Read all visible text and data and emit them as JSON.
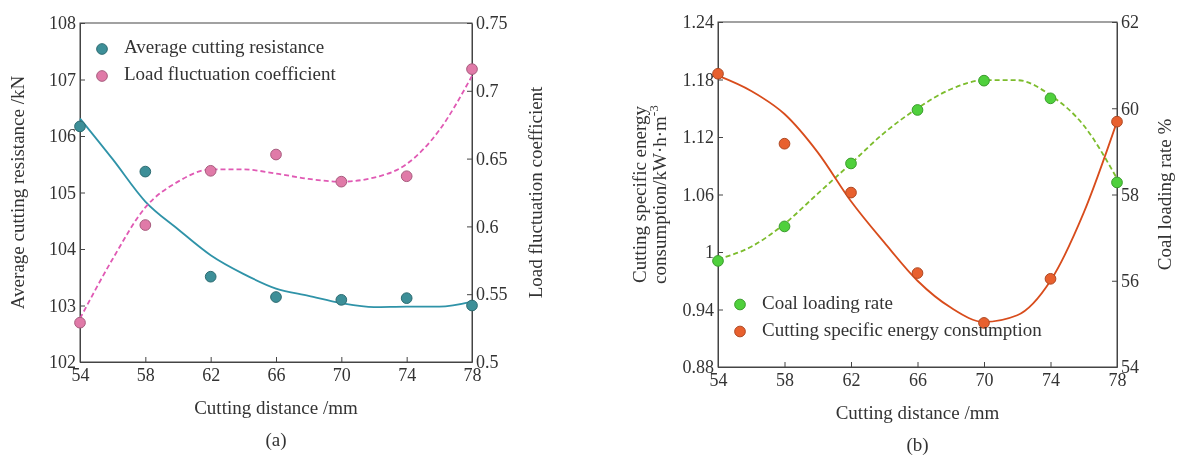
{
  "chart_data": [
    {
      "type": "scatter",
      "xlabel": "Cutting distance /mm",
      "ylabel": "Average cutting resistance /kN",
      "y2label": "Load fluctuation coefficient",
      "xlim": [
        54,
        78
      ],
      "xticks": [
        54,
        58,
        62,
        66,
        70,
        74,
        78
      ],
      "ylim": [
        102,
        108
      ],
      "yticks": [
        102,
        103,
        104,
        105,
        106,
        107,
        108
      ],
      "y2lim": [
        0.5,
        0.75
      ],
      "y2ticks": [
        0.5,
        0.55,
        0.6,
        0.65,
        0.7,
        0.75
      ],
      "legend": "top left",
      "annotations": [
        "(a)"
      ],
      "series": [
        {
          "name": "Average cutting resistance",
          "marker": "circle",
          "color": "#3d8f98",
          "x": [
            54,
            58,
            62,
            66,
            70,
            74,
            78
          ],
          "values": [
            106.17,
            105.37,
            103.51,
            103.15,
            103.1,
            103.13,
            103.0
          ]
        },
        {
          "name": "Load fluctuation coefficient",
          "marker": "circle",
          "axis": "y2",
          "color": "#e07aa8",
          "x": [
            54,
            58,
            62,
            66,
            70,
            74,
            78
          ],
          "values": [
            0.529,
            0.601,
            0.641,
            0.653,
            0.633,
            0.637,
            0.716
          ]
        },
        {
          "type": "line",
          "marker": "none",
          "line_style": "solid",
          "color": "#2f93a8",
          "x": [
            54,
            56,
            58,
            60,
            62,
            64,
            66,
            68,
            70,
            72,
            74,
            76,
            78
          ],
          "values": [
            106.31,
            105.59,
            104.84,
            104.35,
            103.89,
            103.56,
            103.3,
            103.17,
            103.04,
            102.97,
            102.98,
            102.98,
            103.07
          ]
        },
        {
          "type": "line",
          "marker": "none",
          "line_style": "dashed",
          "axis": "y2",
          "color": "#e05ab4",
          "x": [
            54,
            56,
            58,
            60,
            62,
            64,
            66,
            68,
            70,
            72,
            74,
            76,
            78
          ],
          "values": [
            0.532,
            0.576,
            0.614,
            0.633,
            0.642,
            0.642,
            0.639,
            0.635,
            0.633,
            0.636,
            0.646,
            0.671,
            0.711
          ]
        }
      ]
    },
    {
      "type": "scatter",
      "xlabel": "Cutting distance /mm",
      "ylabel": "Cutting specific energy consumption/kW·h·m$^{-3}$",
      "y2label": "Coal loading rate %",
      "xlim": [
        54,
        78
      ],
      "xticks": [
        54,
        58,
        62,
        66,
        70,
        74,
        78
      ],
      "ylim": [
        0.88,
        1.24
      ],
      "yticks": [
        0.88,
        0.94,
        1,
        1.06,
        1.12,
        1.18,
        1.24
      ],
      "y2lim": [
        54,
        62
      ],
      "y2ticks": [
        54,
        56,
        58,
        60,
        62
      ],
      "legend": "bottom left",
      "annotations": [
        "(b)"
      ],
      "series": [
        {
          "name": "Coal loading rate",
          "marker": "circle",
          "axis": "y2",
          "color": "#4fd03c",
          "x": [
            54,
            58,
            62,
            66,
            70,
            74,
            78
          ],
          "values": [
            56.46,
            57.26,
            58.72,
            59.96,
            60.64,
            60.23,
            58.28
          ]
        },
        {
          "name": "Cutting specific energy consumption",
          "marker": "circle",
          "color": "#e8602e",
          "x": [
            54,
            58,
            62,
            66,
            70,
            74,
            78
          ],
          "values": [
            1.186,
            1.113,
            1.062,
            0.978,
            0.926,
            0.972,
            1.136
          ]
        },
        {
          "type": "line",
          "marker": "none",
          "line_style": "dashed",
          "axis": "y2",
          "color": "#7cbc2c",
          "x": [
            54,
            56,
            58,
            60,
            62,
            64,
            66,
            68,
            70,
            72,
            74,
            76,
            78
          ],
          "values": [
            56.5,
            56.79,
            57.32,
            58.02,
            58.72,
            59.43,
            60.0,
            60.44,
            60.65,
            60.65,
            60.3,
            59.6,
            58.37
          ]
        },
        {
          "type": "line",
          "marker": "none",
          "line_style": "solid",
          "color": "#d84c1c",
          "x": [
            54,
            56,
            58,
            60,
            62,
            64,
            66,
            68,
            70,
            72,
            74,
            76,
            78
          ],
          "values": [
            1.184,
            1.168,
            1.144,
            1.104,
            1.053,
            1.01,
            0.97,
            0.942,
            0.927,
            0.934,
            0.97,
            1.041,
            1.136
          ]
        }
      ]
    }
  ]
}
